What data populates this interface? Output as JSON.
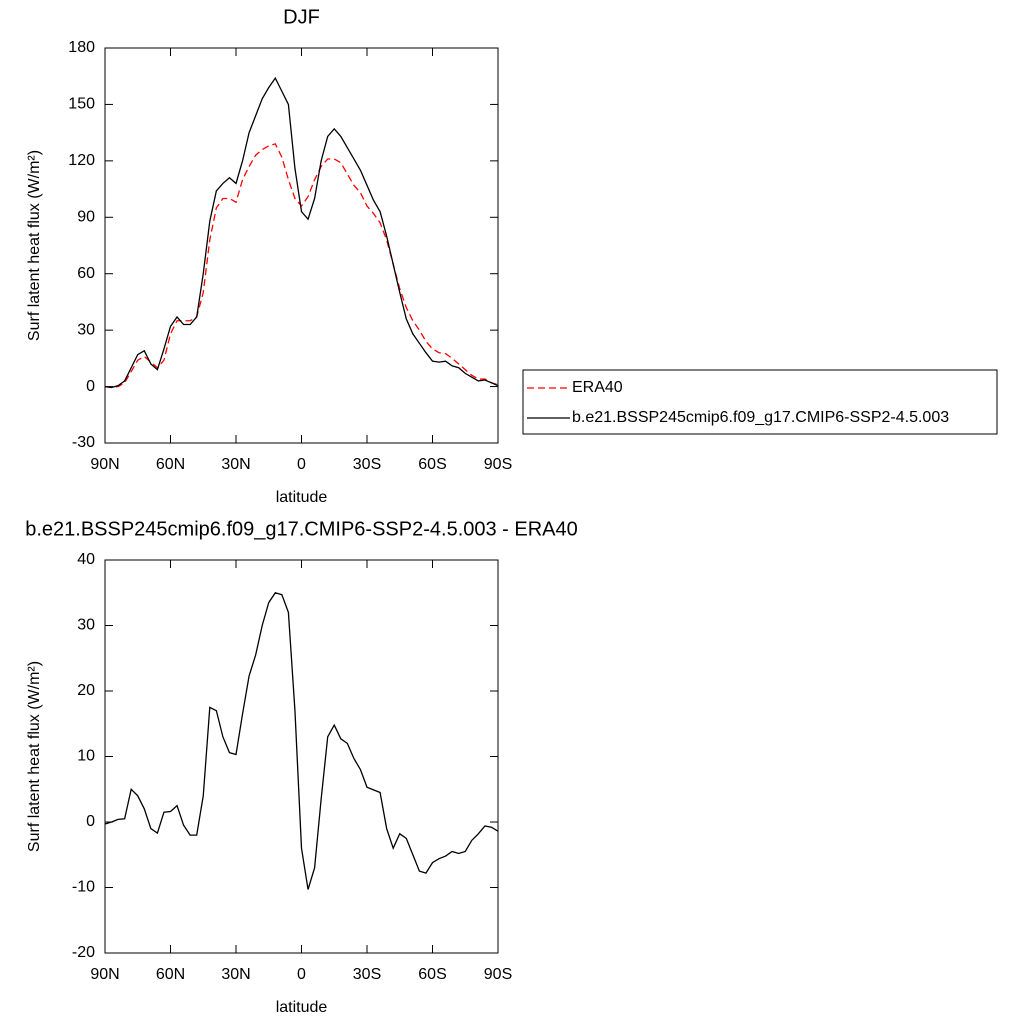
{
  "chart_data": [
    {
      "type": "line",
      "title": "DJF",
      "xlabel": "latitude",
      "ylabel": "Surf latent heat flux (W/m²)",
      "x": [
        90,
        87,
        84,
        81,
        78,
        75,
        72,
        69,
        66,
        63,
        60,
        57,
        54,
        51,
        48,
        45,
        42,
        39,
        36,
        33,
        30,
        27,
        24,
        21,
        18,
        15,
        12,
        9,
        6,
        3,
        0,
        -3,
        -6,
        -9,
        -12,
        -15,
        -18,
        -21,
        -24,
        -27,
        -30,
        -33,
        -36,
        -39,
        -42,
        -45,
        -48,
        -51,
        -54,
        -57,
        -60,
        -63,
        -66,
        -69,
        -72,
        -75,
        -78,
        -81,
        -84,
        -87,
        -90
      ],
      "xlim": [
        90,
        -90
      ],
      "xticks": [
        {
          "value": 90,
          "label": "90N"
        },
        {
          "value": 60,
          "label": "60N"
        },
        {
          "value": 30,
          "label": "30N"
        },
        0,
        {
          "value": -30,
          "label": "30S"
        },
        {
          "value": -60,
          "label": "60S"
        },
        {
          "value": -90,
          "label": "90S"
        }
      ],
      "ylim": [
        -30,
        180
      ],
      "yticks": [
        -30,
        0,
        30,
        60,
        90,
        120,
        150,
        180
      ],
      "legend": "right",
      "series": [
        {
          "name": "ERA40",
          "color": "#ff0000",
          "dash": true,
          "values": [
            0,
            -0.5,
            0,
            2,
            8,
            14,
            16,
            13,
            10,
            14,
            28,
            35,
            35,
            35,
            37,
            50,
            78,
            95,
            100,
            100,
            98,
            110,
            117,
            123,
            126,
            128,
            129,
            122,
            110,
            100,
            96,
            101,
            110,
            117,
            121,
            121,
            119,
            113,
            107,
            103,
            96,
            92,
            87,
            78,
            65,
            52,
            42,
            35,
            30,
            24,
            20,
            18,
            17.5,
            15,
            12,
            9,
            6,
            4,
            4,
            2,
            1
          ]
        },
        {
          "name": "b.e21.BSSP245cmip6.f09_g17.CMIP6-SSP2-4.5.003",
          "color": "#000000",
          "dash": false,
          "values": [
            0,
            -0.5,
            0.5,
            3,
            10,
            17,
            19,
            12,
            9,
            20,
            32,
            37,
            33,
            33,
            37,
            60,
            88,
            104,
            108,
            111,
            108,
            120,
            135,
            144,
            153,
            159,
            164,
            157,
            150,
            116,
            93,
            89,
            100,
            120,
            133,
            137,
            133,
            127,
            121,
            115,
            107,
            99,
            93,
            80,
            65,
            50,
            36,
            28,
            23,
            18,
            13.5,
            13,
            13.5,
            11,
            10,
            7,
            5,
            3,
            3.5,
            2,
            0.5
          ]
        }
      ]
    },
    {
      "type": "line",
      "title": "b.e21.BSSP245cmip6.f09_g17.CMIP6-SSP2-4.5.003 - ERA40",
      "xlabel": "latitude",
      "ylabel": "Surf latent heat flux (W/m²)",
      "x": [
        90,
        87,
        84,
        81,
        78,
        75,
        72,
        69,
        66,
        63,
        60,
        57,
        54,
        51,
        48,
        45,
        42,
        39,
        36,
        33,
        30,
        27,
        24,
        21,
        18,
        15,
        12,
        9,
        6,
        3,
        0,
        -3,
        -6,
        -9,
        -12,
        -15,
        -18,
        -21,
        -24,
        -27,
        -30,
        -33,
        -36,
        -39,
        -42,
        -45,
        -48,
        -51,
        -54,
        -57,
        -60,
        -63,
        -66,
        -69,
        -72,
        -75,
        -78,
        -81,
        -84,
        -87,
        -90
      ],
      "xlim": [
        90,
        -90
      ],
      "xticks": [
        {
          "value": 90,
          "label": "90N"
        },
        {
          "value": 60,
          "label": "60N"
        },
        {
          "value": 30,
          "label": "30N"
        },
        0,
        {
          "value": -30,
          "label": "30S"
        },
        {
          "value": -60,
          "label": "60S"
        },
        {
          "value": -90,
          "label": "90S"
        }
      ],
      "ylim": [
        -20,
        40
      ],
      "yticks": [
        -20,
        -10,
        0,
        10,
        20,
        30,
        40
      ],
      "color": "#000000",
      "values": [
        -0.3,
        0,
        0.4,
        0.5,
        5,
        4,
        2,
        -1,
        -1.7,
        1.5,
        1.6,
        2.5,
        -0.5,
        -2,
        -2,
        4,
        17.5,
        17,
        13,
        10.6,
        10.3,
        16.5,
        22.3,
        25.5,
        30,
        33.5,
        35,
        34.7,
        32,
        17,
        -4,
        -10.3,
        -7,
        3.5,
        13,
        14.8,
        12.7,
        12,
        9.7,
        8,
        5.3,
        4.9,
        4.5,
        -1,
        -4,
        -1.8,
        -2.5,
        -5,
        -7.5,
        -7.8,
        -6.2,
        -5.6,
        -5.2,
        -4.5,
        -4.8,
        -4.5,
        -2.8,
        -1.8,
        -0.6,
        -0.8,
        -1.4
      ]
    }
  ]
}
